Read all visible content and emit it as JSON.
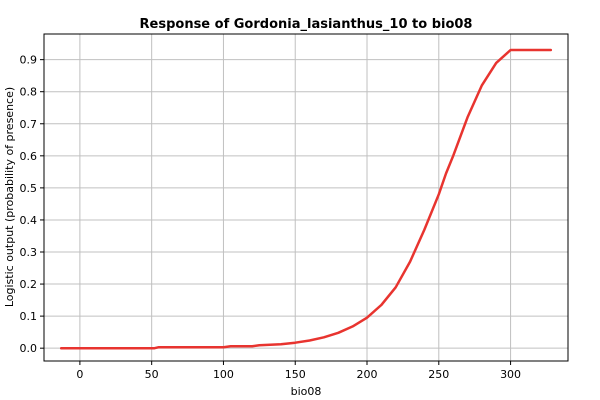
{
  "chart_data": {
    "type": "line",
    "title": "Response of Gordonia_lasianthus_10 to bio08",
    "xlabel": "bio08",
    "ylabel": "Logistic output (probability of presence)",
    "xlim": [
      -25,
      340
    ],
    "ylim": [
      -0.04,
      0.98
    ],
    "xticks": [
      0,
      50,
      100,
      150,
      200,
      250,
      300
    ],
    "xtick_labels": [
      "0",
      "50",
      "100",
      "150",
      "200",
      "250",
      "300"
    ],
    "yticks": [
      0.0,
      0.1,
      0.2,
      0.3,
      0.4,
      0.5,
      0.6,
      0.7,
      0.8,
      0.9
    ],
    "ytick_labels": [
      "0.0",
      "0.1",
      "0.2",
      "0.3",
      "0.4",
      "0.5",
      "0.6",
      "0.7",
      "0.8",
      "0.9"
    ],
    "grid": true,
    "line_color": "#e8342f",
    "series": [
      {
        "x": [
          -13,
          0,
          20,
          40,
          52,
          55,
          80,
          100,
          105,
          120,
          125,
          140,
          150,
          160,
          170,
          180,
          190,
          200,
          210,
          220,
          230,
          240,
          250,
          255,
          260,
          270,
          280,
          290,
          300,
          310,
          320,
          328
        ],
        "y": [
          0.0,
          0.0,
          0.0,
          0.0,
          0.0,
          0.003,
          0.003,
          0.003,
          0.006,
          0.006,
          0.009,
          0.012,
          0.017,
          0.024,
          0.034,
          0.048,
          0.068,
          0.095,
          0.135,
          0.19,
          0.27,
          0.37,
          0.48,
          0.545,
          0.6,
          0.72,
          0.82,
          0.89,
          0.93,
          0.93,
          0.93,
          0.93
        ]
      }
    ]
  }
}
